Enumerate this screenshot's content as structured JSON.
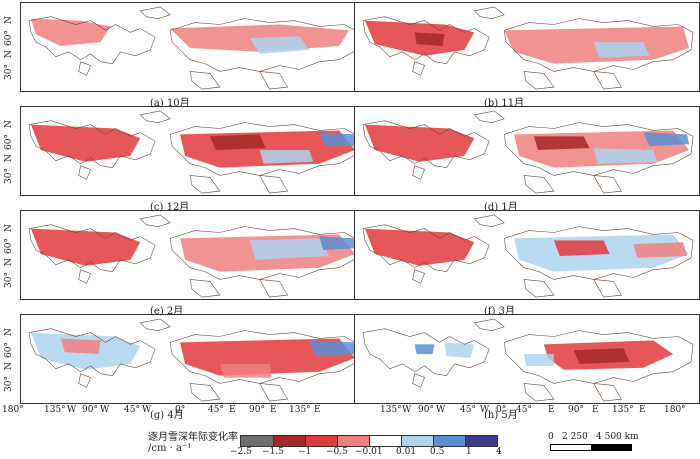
{
  "panels": [
    {
      "caption": "(a) 10月"
    },
    {
      "caption": "(b) 11月"
    },
    {
      "caption": "(c) 12月"
    },
    {
      "caption": "(d) 1月"
    },
    {
      "caption": "(e) 2月"
    },
    {
      "caption": "(f) 3月"
    },
    {
      "caption": "(g) 4月"
    },
    {
      "caption": "(h) 5月"
    }
  ],
  "lat_labels": [
    "30°",
    "N",
    "60°",
    "N"
  ],
  "lon_ticks_left": [
    "180°",
    "135°",
    "W",
    "90°",
    "W",
    "45°",
    "W",
    "0°",
    "45°",
    "E",
    "90°",
    "E",
    "135°",
    "E"
  ],
  "lon_ticks_right": [
    "135°",
    "W",
    "90°",
    "W",
    "45°",
    "W",
    "0°",
    "45°",
    "E",
    "90°",
    "E",
    "135°",
    "E",
    "180°"
  ],
  "legend": {
    "title_line1": "逐月雪深年际变化率",
    "title_line2": "/cm · a⁻¹",
    "colors": [
      "#6e6e6e",
      "#a62828",
      "#e0393b",
      "#f08080",
      "#ffffff",
      "#aed4ee",
      "#5b8fd4",
      "#3e3a8c"
    ],
    "ticks": [
      "−2.5",
      "−1.5",
      "−1",
      "−0.5",
      "−0.01",
      "0.01",
      "0.5",
      "1",
      "4"
    ]
  },
  "scale_bar": {
    "labels": [
      "0",
      "2 250",
      "4 500 km"
    ]
  }
}
